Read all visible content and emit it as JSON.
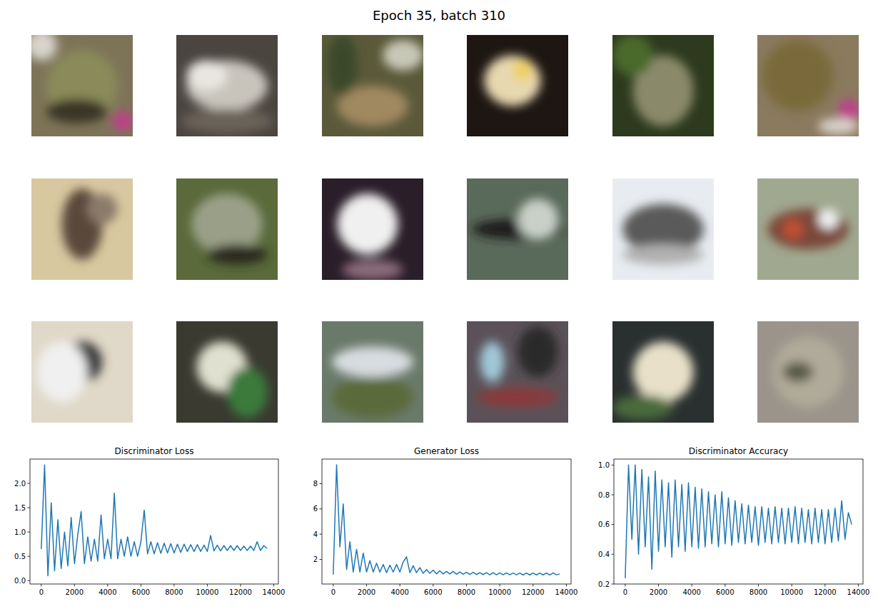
{
  "title": "Epoch 35, batch 310",
  "chart_data": [
    {
      "type": "line",
      "title": "Discriminator Loss",
      "color": "#1f77b4",
      "x": [
        0,
        200,
        400,
        600,
        800,
        1000,
        1200,
        1400,
        1600,
        1800,
        2000,
        2200,
        2400,
        2600,
        2800,
        3000,
        3200,
        3400,
        3600,
        3800,
        4000,
        4200,
        4400,
        4600,
        4800,
        5000,
        5200,
        5400,
        5600,
        5800,
        6000,
        6200,
        6400,
        6600,
        6800,
        7000,
        7200,
        7400,
        7600,
        7800,
        8000,
        8200,
        8400,
        8600,
        8800,
        9000,
        9200,
        9400,
        9600,
        9800,
        10000,
        10200,
        10400,
        10600,
        10800,
        11000,
        11200,
        11400,
        11600,
        11800,
        12000,
        12200,
        12400,
        12600,
        12800,
        13000,
        13200,
        13400,
        13600
      ],
      "values": [
        0.65,
        2.38,
        0.1,
        1.6,
        0.2,
        1.25,
        0.25,
        1.0,
        0.3,
        1.3,
        0.35,
        0.95,
        1.42,
        0.35,
        0.9,
        0.4,
        0.85,
        0.4,
        1.35,
        0.45,
        0.85,
        0.45,
        1.8,
        0.45,
        0.85,
        0.5,
        0.9,
        0.5,
        0.8,
        0.5,
        0.8,
        1.45,
        0.55,
        0.8,
        0.55,
        0.78,
        0.56,
        0.77,
        0.57,
        0.76,
        0.57,
        0.75,
        0.58,
        0.75,
        0.6,
        0.74,
        0.6,
        0.74,
        0.6,
        0.73,
        0.6,
        0.93,
        0.61,
        0.73,
        0.61,
        0.72,
        0.62,
        0.72,
        0.62,
        0.72,
        0.62,
        0.71,
        0.62,
        0.71,
        0.62,
        0.8,
        0.62,
        0.72,
        0.66
      ],
      "xlim": [
        -680,
        14280
      ],
      "xticks": [
        0,
        2000,
        4000,
        6000,
        8000,
        10000,
        12000,
        14000
      ],
      "ylim": [
        -0.07,
        2.5
      ],
      "yticks": [
        {
          "value": 0,
          "label": "0.0"
        },
        {
          "value": 0.5,
          "label": "0.5"
        },
        {
          "value": 1,
          "label": "1.0"
        },
        {
          "value": 1.5,
          "label": "1.5"
        },
        {
          "value": 2,
          "label": "2.0"
        }
      ]
    },
    {
      "type": "line",
      "title": "Generator Loss",
      "color": "#1f77b4",
      "x": [
        0,
        200,
        400,
        600,
        800,
        1000,
        1200,
        1400,
        1600,
        1800,
        2000,
        2200,
        2400,
        2600,
        2800,
        3000,
        3200,
        3400,
        3600,
        3800,
        4000,
        4200,
        4400,
        4600,
        4800,
        5000,
        5200,
        5400,
        5600,
        5800,
        6000,
        6200,
        6400,
        6600,
        6800,
        7000,
        7200,
        7400,
        7600,
        7800,
        8000,
        8200,
        8400,
        8600,
        8800,
        9000,
        9200,
        9400,
        9600,
        9800,
        10000,
        10200,
        10400,
        10600,
        10800,
        11000,
        11200,
        11400,
        11600,
        11800,
        12000,
        12200,
        12400,
        12600,
        12800,
        13000,
        13200,
        13400,
        13600
      ],
      "values": [
        0.8,
        9.5,
        3.0,
        6.4,
        1.2,
        3.4,
        1.0,
        2.8,
        1.0,
        2.5,
        1.0,
        1.9,
        1.0,
        1.7,
        1.0,
        1.6,
        0.95,
        1.55,
        1.0,
        1.6,
        1.0,
        1.8,
        2.2,
        0.95,
        1.5,
        0.95,
        1.35,
        0.9,
        1.2,
        0.9,
        1.15,
        0.85,
        1.1,
        0.85,
        1.05,
        0.85,
        1.05,
        0.82,
        1.0,
        0.82,
        0.98,
        0.8,
        0.97,
        0.8,
        0.95,
        0.8,
        0.95,
        0.78,
        0.95,
        0.78,
        0.93,
        0.78,
        0.93,
        0.78,
        0.92,
        0.78,
        0.92,
        0.77,
        0.92,
        0.77,
        0.92,
        0.77,
        0.92,
        0.77,
        0.92,
        0.77,
        0.93,
        0.78,
        0.85
      ],
      "xlim": [
        -680,
        14280
      ],
      "xticks": [
        0,
        2000,
        4000,
        6000,
        8000,
        10000,
        12000,
        14000
      ],
      "ylim": [
        0.05,
        9.95
      ],
      "yticks": [
        2,
        4,
        6,
        8
      ]
    },
    {
      "type": "line",
      "title": "Discriminator Accuracy",
      "color": "#1f77b4",
      "x": [
        0,
        200,
        400,
        600,
        800,
        1000,
        1200,
        1400,
        1600,
        1800,
        2000,
        2200,
        2400,
        2600,
        2800,
        3000,
        3200,
        3400,
        3600,
        3800,
        4000,
        4200,
        4400,
        4600,
        4800,
        5000,
        5200,
        5400,
        5600,
        5800,
        6000,
        6200,
        6400,
        6600,
        6800,
        7000,
        7200,
        7400,
        7600,
        7800,
        8000,
        8200,
        8400,
        8600,
        8800,
        9000,
        9200,
        9400,
        9600,
        9800,
        10000,
        10200,
        10400,
        10600,
        10800,
        11000,
        11200,
        11400,
        11600,
        11800,
        12000,
        12200,
        12400,
        12600,
        12800,
        13000,
        13200,
        13400,
        13600
      ],
      "values": [
        0.24,
        1.0,
        0.5,
        1.0,
        0.4,
        0.97,
        0.45,
        0.92,
        0.3,
        0.96,
        0.42,
        0.9,
        0.45,
        0.88,
        0.38,
        0.9,
        0.45,
        0.87,
        0.42,
        0.88,
        0.45,
        0.85,
        0.44,
        0.84,
        0.45,
        0.82,
        0.47,
        0.8,
        0.45,
        0.82,
        0.47,
        0.78,
        0.46,
        0.76,
        0.48,
        0.74,
        0.47,
        0.73,
        0.48,
        0.72,
        0.46,
        0.72,
        0.48,
        0.71,
        0.47,
        0.72,
        0.48,
        0.71,
        0.47,
        0.71,
        0.48,
        0.72,
        0.47,
        0.71,
        0.48,
        0.7,
        0.47,
        0.71,
        0.48,
        0.7,
        0.47,
        0.7,
        0.48,
        0.71,
        0.49,
        0.76,
        0.5,
        0.68,
        0.6
      ],
      "xlim": [
        -680,
        14280
      ],
      "xticks": [
        0,
        2000,
        4000,
        6000,
        8000,
        10000,
        12000,
        14000
      ],
      "ylim": [
        0.2,
        1.04
      ],
      "yticks": [
        0.2,
        0.4,
        0.6,
        0.8,
        {
          "value": 1,
          "label": "1.0"
        }
      ]
    }
  ]
}
